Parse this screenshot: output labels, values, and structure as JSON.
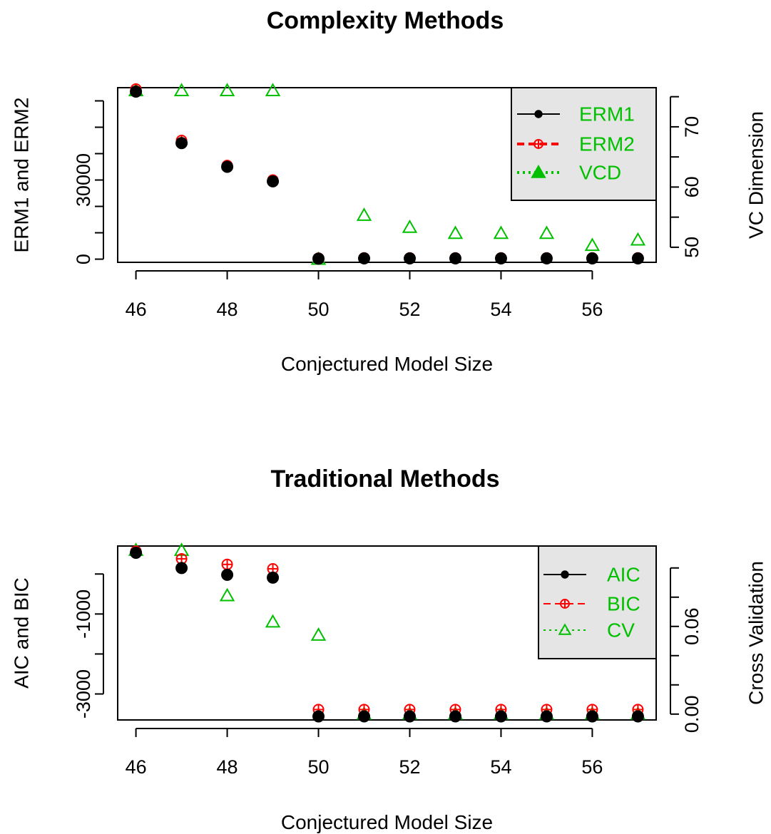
{
  "colors": {
    "black": "#000000",
    "red": "#ff0000",
    "green": "#00c000",
    "legend_bg": "#e5e5e5"
  },
  "chart_data": [
    {
      "type": "scatter",
      "title": "Complexity Methods",
      "xlabel": "Conjectured Model Size",
      "ylabel_left": "ERM1 and ERM2",
      "ylabel_right": "VC Dimension",
      "xlim": [
        45.6,
        57.4
      ],
      "x_ticks": [
        46,
        48,
        50,
        52,
        54,
        56
      ],
      "ylim_left": [
        -1200,
        65000
      ],
      "y_ticks_left": [
        0,
        10000,
        20000,
        30000,
        40000,
        50000,
        60000
      ],
      "y_tick_labels_left": {
        "0": "0",
        "30000": "30000"
      },
      "ylim_right": [
        47.5,
        76.5
      ],
      "y_ticks_right": [
        50,
        55,
        60,
        65,
        70,
        75
      ],
      "y_tick_labels_right": {
        "50": "50",
        "60": "60",
        "70": "70"
      },
      "legend_position": "top-right",
      "x": [
        46,
        47,
        48,
        49,
        50,
        51,
        52,
        53,
        54,
        55,
        56,
        57
      ],
      "series": [
        {
          "name": "ERM1",
          "axis": "left",
          "color": "#000000",
          "marker": "filled-circle",
          "legend_line": "solid",
          "values": [
            63500,
            44000,
            35000,
            29500,
            200,
            300,
            300,
            300,
            300,
            300,
            300,
            300
          ]
        },
        {
          "name": "ERM2",
          "axis": "left",
          "color": "#ff0000",
          "marker": "circle-plus",
          "legend_line": "dashed",
          "values": [
            64500,
            45000,
            35500,
            30000,
            400,
            500,
            500,
            500,
            500,
            500,
            500,
            500
          ]
        },
        {
          "name": "VCD",
          "axis": "right",
          "color": "#00c000",
          "marker": "triangle",
          "legend_line": "dotted",
          "values": [
            76,
            76,
            76,
            76,
            48,
            55.3,
            53.3,
            52.3,
            52.3,
            52.3,
            50.3,
            51.2
          ]
        }
      ]
    },
    {
      "type": "scatter",
      "title": "Traditional Methods",
      "xlabel": "Conjectured Model Size",
      "ylabel_left": "AIC and BIC",
      "ylabel_right": "Cross Validation",
      "xlim": [
        45.6,
        57.4
      ],
      "x_ticks": [
        46,
        48,
        50,
        52,
        54,
        56
      ],
      "ylim_left": [
        -3650,
        700
      ],
      "y_ticks_left": [
        -3000,
        -2000,
        -1000,
        0
      ],
      "y_tick_labels_left": {
        "-3000": "-3000",
        "-1000": "-1000"
      },
      "ylim_right": [
        -0.004,
        0.115
      ],
      "y_ticks_right": [
        0,
        0.02,
        0.04,
        0.06,
        0.08,
        0.1
      ],
      "y_tick_labels_right": {
        "0": "0.00",
        "0.06": "0.06"
      },
      "legend_position": "top-right",
      "x": [
        46,
        47,
        48,
        49,
        50,
        51,
        52,
        53,
        54,
        55,
        56,
        57
      ],
      "series": [
        {
          "name": "AIC",
          "axis": "left",
          "color": "#000000",
          "marker": "filled-circle",
          "legend_line": "solid",
          "values": [
            530,
            150,
            -20,
            -90,
            -3560,
            -3560,
            -3560,
            -3560,
            -3560,
            -3560,
            -3560,
            -3560
          ]
        },
        {
          "name": "BIC",
          "axis": "left",
          "color": "#ff0000",
          "marker": "circle-plus",
          "legend_line": "dashed",
          "values": [
            570,
            380,
            240,
            130,
            -3390,
            -3390,
            -3390,
            -3390,
            -3390,
            -3390,
            -3390,
            -3390
          ]
        },
        {
          "name": "CV",
          "axis": "right",
          "color": "#00c000",
          "marker": "triangle",
          "legend_line": "dotted",
          "values": [
            0.112,
            0.112,
            0.081,
            0.063,
            0.054,
            0.0,
            0.0,
            0.0,
            0.0,
            0.0,
            0.0,
            0.0
          ]
        }
      ]
    }
  ]
}
